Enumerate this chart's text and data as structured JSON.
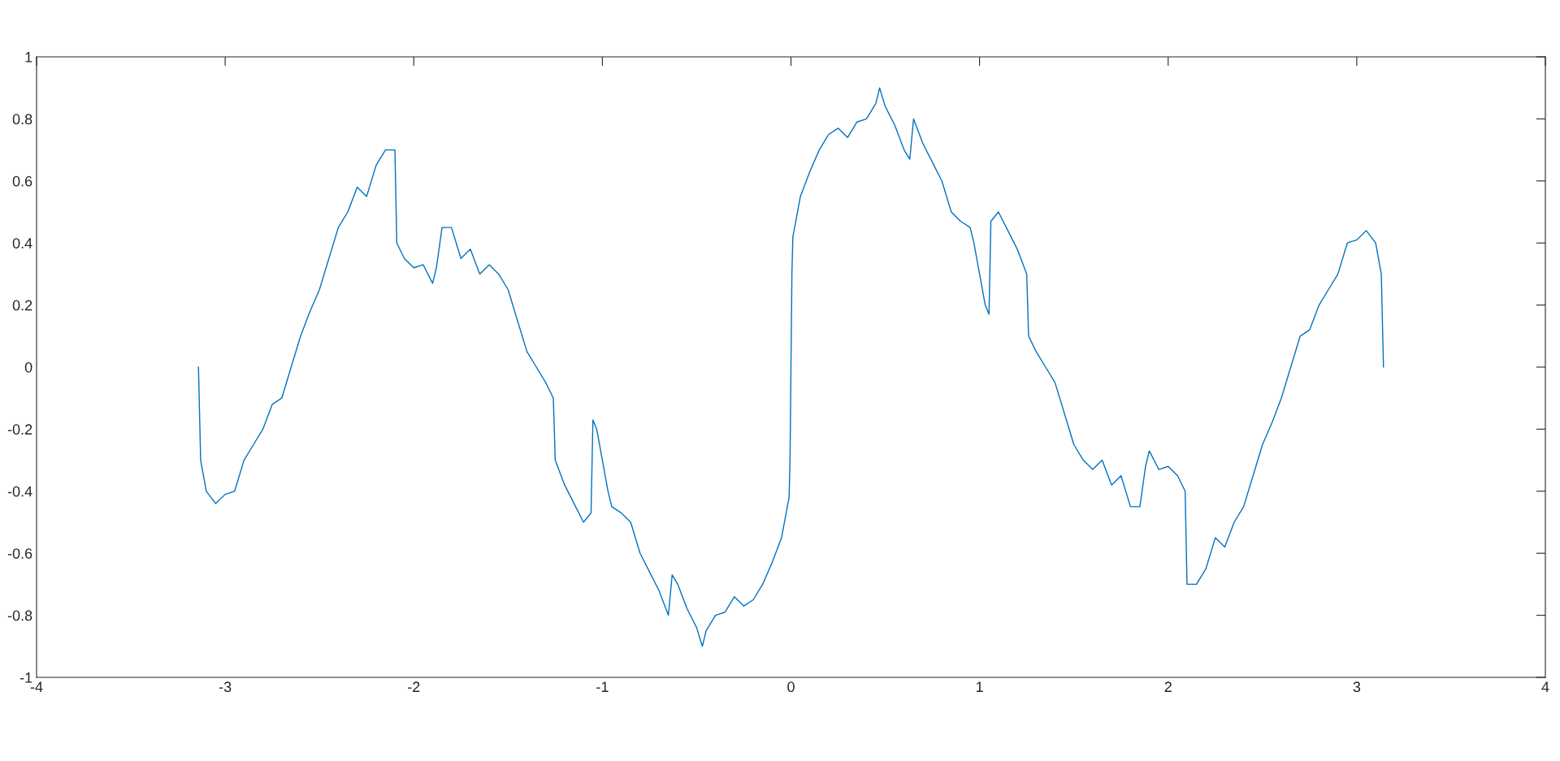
{
  "chart_data": {
    "type": "line",
    "xlim": [
      -4,
      4
    ],
    "ylim": [
      -1,
      1
    ],
    "xticks": [
      -4,
      -3,
      -2,
      -1,
      0,
      1,
      2,
      3,
      4
    ],
    "yticks": [
      -1,
      -0.8,
      -0.6,
      -0.4,
      -0.2,
      0,
      0.2,
      0.4,
      0.6,
      0.8,
      1
    ],
    "grid": false,
    "marker": "none",
    "line_style": "solid",
    "series": [
      {
        "color": "#0072bd",
        "x": [
          -3.1416,
          -3.13,
          -3.1,
          -3.05,
          -3.0,
          -2.95,
          -2.9,
          -2.85,
          -2.8,
          -2.75,
          -2.7,
          -2.65,
          -2.6,
          -2.55,
          -2.5,
          -2.45,
          -2.4,
          -2.35,
          -2.3,
          -2.25,
          -2.2,
          -2.15,
          -2.1,
          -2.09,
          -2.05,
          -2.0,
          -1.95,
          -1.9,
          -1.88,
          -1.85,
          -1.8,
          -1.75,
          -1.7,
          -1.65,
          -1.6,
          -1.55,
          -1.5,
          -1.45,
          -1.4,
          -1.35,
          -1.3,
          -1.26,
          -1.25,
          -1.2,
          -1.15,
          -1.1,
          -1.06,
          -1.05,
          -1.03,
          -1.0,
          -0.97,
          -0.95,
          -0.9,
          -0.85,
          -0.8,
          -0.75,
          -0.7,
          -0.65,
          -0.63,
          -0.6,
          -0.55,
          -0.5,
          -0.47,
          -0.45,
          -0.4,
          -0.35,
          -0.3,
          -0.25,
          -0.2,
          -0.15,
          -0.1,
          -0.05,
          -0.01,
          -0.005,
          0,
          0.005,
          0.01,
          0.05,
          0.1,
          0.15,
          0.2,
          0.25,
          0.3,
          0.35,
          0.4,
          0.45,
          0.47,
          0.5,
          0.55,
          0.6,
          0.63,
          0.65,
          0.7,
          0.75,
          0.8,
          0.85,
          0.9,
          0.95,
          0.97,
          1.0,
          1.03,
          1.05,
          1.06,
          1.1,
          1.15,
          1.2,
          1.25,
          1.26,
          1.3,
          1.35,
          1.4,
          1.45,
          1.5,
          1.55,
          1.6,
          1.65,
          1.7,
          1.75,
          1.8,
          1.85,
          1.88,
          1.9,
          1.95,
          2.0,
          2.05,
          2.09,
          2.1,
          2.15,
          2.2,
          2.25,
          2.3,
          2.35,
          2.4,
          2.45,
          2.5,
          2.55,
          2.6,
          2.65,
          2.7,
          2.75,
          2.8,
          2.85,
          2.9,
          2.95,
          3.0,
          3.05,
          3.1,
          3.13,
          3.1416
        ],
        "values": [
          0,
          -0.3,
          -0.4,
          -0.44,
          -0.41,
          -0.4,
          -0.3,
          -0.25,
          -0.2,
          -0.12,
          -0.1,
          0.0,
          0.1,
          0.18,
          0.25,
          0.35,
          0.45,
          0.5,
          0.58,
          0.55,
          0.65,
          0.7,
          0.7,
          0.4,
          0.35,
          0.32,
          0.33,
          0.27,
          0.32,
          0.45,
          0.45,
          0.35,
          0.38,
          0.3,
          0.33,
          0.3,
          0.25,
          0.15,
          0.05,
          0.0,
          -0.05,
          -0.1,
          -0.3,
          -0.38,
          -0.44,
          -0.5,
          -0.47,
          -0.17,
          -0.2,
          -0.3,
          -0.4,
          -0.45,
          -0.47,
          -0.5,
          -0.6,
          -0.66,
          -0.72,
          -0.8,
          -0.67,
          -0.7,
          -0.78,
          -0.84,
          -0.9,
          -0.85,
          -0.8,
          -0.79,
          -0.74,
          -0.77,
          -0.75,
          -0.7,
          -0.63,
          -0.55,
          -0.42,
          -0.3,
          0,
          0.3,
          0.42,
          0.55,
          0.63,
          0.7,
          0.75,
          0.77,
          0.74,
          0.79,
          0.8,
          0.85,
          0.9,
          0.84,
          0.78,
          0.7,
          0.67,
          0.8,
          0.72,
          0.66,
          0.6,
          0.5,
          0.47,
          0.45,
          0.4,
          0.3,
          0.2,
          0.17,
          0.47,
          0.5,
          0.44,
          0.38,
          0.3,
          0.1,
          0.05,
          0.0,
          -0.05,
          -0.15,
          -0.25,
          -0.3,
          -0.33,
          -0.3,
          -0.38,
          -0.35,
          -0.45,
          -0.45,
          -0.32,
          -0.27,
          -0.33,
          -0.32,
          -0.35,
          -0.4,
          -0.7,
          -0.7,
          -0.65,
          -0.55,
          -0.58,
          -0.5,
          -0.45,
          -0.35,
          -0.25,
          -0.18,
          -0.1,
          0.0,
          0.1,
          0.12,
          0.2,
          0.25,
          0.3,
          0.4,
          0.41,
          0.44,
          0.4,
          0.3,
          0
        ]
      }
    ]
  }
}
